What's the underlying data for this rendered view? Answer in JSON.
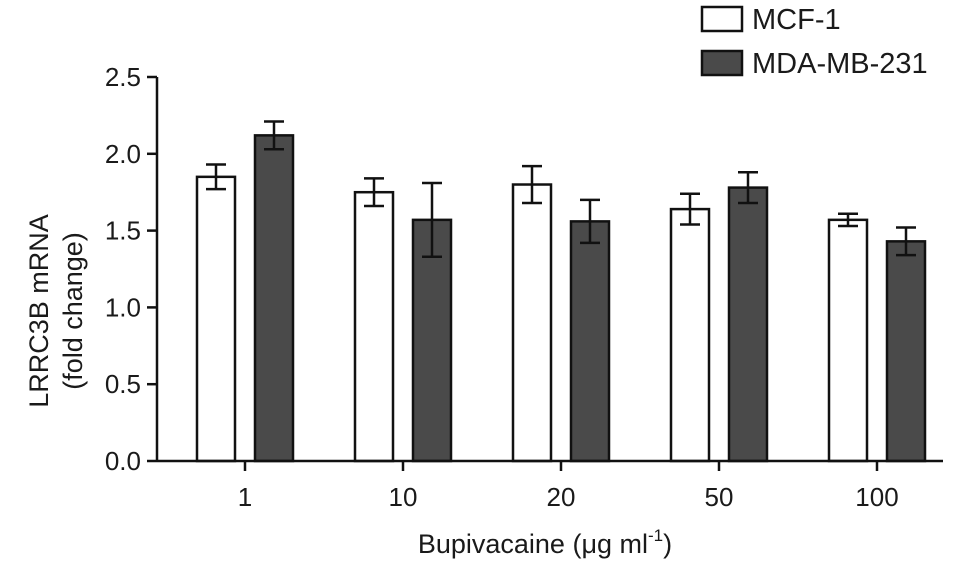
{
  "chart_data": {
    "type": "bar",
    "title": "",
    "xlabel": "Bupivacaine (μg ml",
    "xlabel_superscript": "-1",
    "xlabel_suffix": ")",
    "ylabel": [
      "LRRC3B mRNA",
      "(fold change)"
    ],
    "categories": [
      "1",
      "10",
      "20",
      "50",
      "100"
    ],
    "ylim": [
      0,
      2.5
    ],
    "yticks": [
      "0.0",
      "0.5",
      "1.0",
      "1.5",
      "2.0",
      "2.5"
    ],
    "grid": false,
    "legend_position": "top-right",
    "series": [
      {
        "name": "MCF-1",
        "color": "#ffffff",
        "values": [
          1.85,
          1.75,
          1.8,
          1.64,
          1.57
        ],
        "errors": [
          0.08,
          0.09,
          0.12,
          0.1,
          0.04
        ]
      },
      {
        "name": "MDA-MB-231",
        "color": "#4a4a4a",
        "values": [
          2.12,
          1.57,
          1.56,
          1.78,
          1.43
        ],
        "errors": [
          0.09,
          0.24,
          0.14,
          0.1,
          0.09
        ]
      }
    ]
  }
}
